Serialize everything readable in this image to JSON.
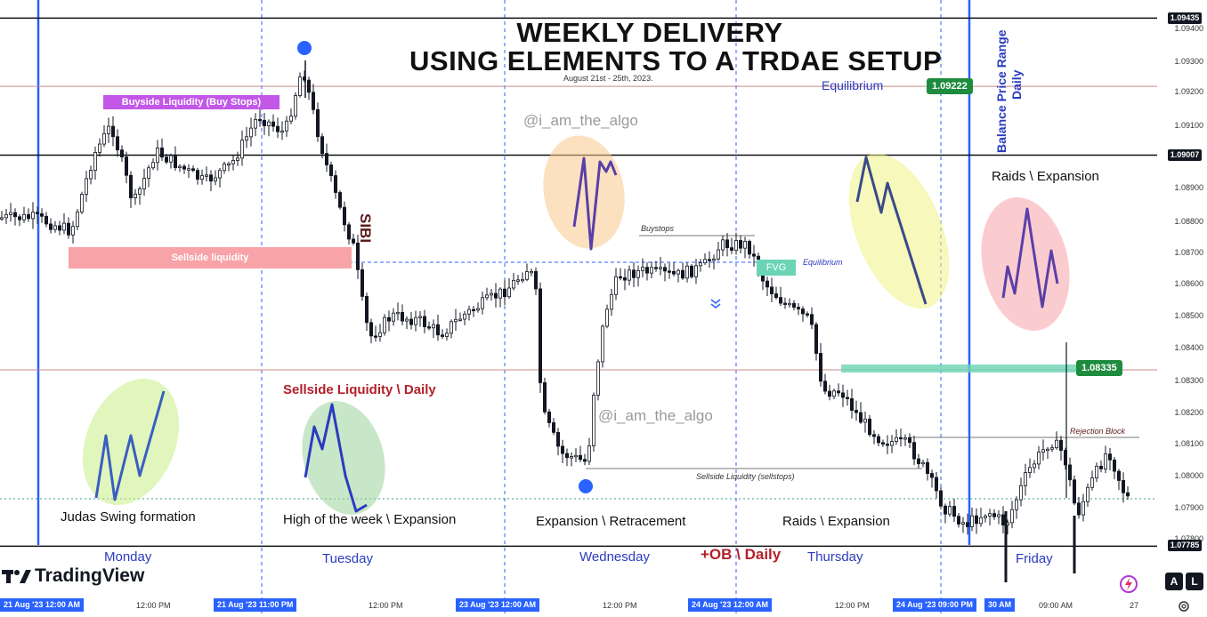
{
  "title_line1": "WEEKLY DELIVERY",
  "title_line2": "USING ELEMENTS TO A TRDAE SETUP",
  "subtitle": "August 21st - 25th, 2023.",
  "watermark": "@i_am_the_algo",
  "logo_text": "TradingView",
  "price_axis": [
    "1.09400",
    "1.09300",
    "1.09200",
    "1.09100",
    "1.08900",
    "1.08800",
    "1.08700",
    "1.08600",
    "1.08500",
    "1.08400",
    "1.08300",
    "1.08200",
    "1.08100",
    "1.08000",
    "1.07900",
    "1.07800"
  ],
  "price_labels": {
    "top": "1.09435",
    "upper": "1.09007",
    "lower": "1.07785"
  },
  "green_labels": {
    "equilibrium": "1.09222",
    "fvg_level": "1.08335"
  },
  "time_axis": {
    "highlighted": [
      "21 Aug '23   12:00 AM",
      "21 Aug '23   11:00 PM",
      "23 Aug '23   12:00 AM",
      "24 Aug '23   12:00 AM",
      "24 Aug '23   09:00 PM",
      "30 AM"
    ],
    "plain": [
      "12:00 PM",
      "12:00 PM",
      "12:00 PM",
      "12:00 PM",
      "09:00 AM",
      "27"
    ]
  },
  "days": [
    "Monday",
    "Tuesday",
    "Wednesday",
    "Thursday",
    "Friday"
  ],
  "annotations": {
    "buyside": "Buyside Liquidity (Buy Stops)",
    "sellside": "Sellside liquidity",
    "sibi": "SIBI",
    "sellside_daily": "Sellside Liquidity \\ Daily",
    "equilibrium_top": "Equilibrium",
    "buystops": "Buystops",
    "fvg": "FVG",
    "equilibrium_small": "Equilibrium",
    "balance_range": "Balance Price Range",
    "daily": "Daily",
    "raids_top": "Raids \\ Expansion",
    "rejection_block": "Rejection Block",
    "sellside_stops": "Sellside Liquidity (sellstops)",
    "judas": "Judas Swing formation",
    "high_week": "High of the week \\ Expansion",
    "expansion_retracement": "Expansion \\ Retracement",
    "raids_bottom": "Raids \\ Expansion",
    "ob_daily": "+OB \\ Daily"
  },
  "buttons": {
    "a": "A",
    "l": "L"
  },
  "colors": {
    "blue_line": "#2962ff",
    "buyside": "#c257e8",
    "sellside": "#f7a3a8",
    "fvg": "#6ad4b4",
    "green_label": "#1e8c3f",
    "maroon": "#b3202a"
  },
  "chart_data": {
    "type": "candlestick",
    "ylim": [
      1.0775,
      1.09435
    ],
    "levels": [
      1.09435,
      1.09222,
      1.09007,
      1.08335,
      1.07785
    ],
    "key_prices": {
      "week_high": 1.09435,
      "week_low": 1.07785,
      "equilibrium": 1.09222,
      "daily_fvg": 1.08335
    }
  }
}
